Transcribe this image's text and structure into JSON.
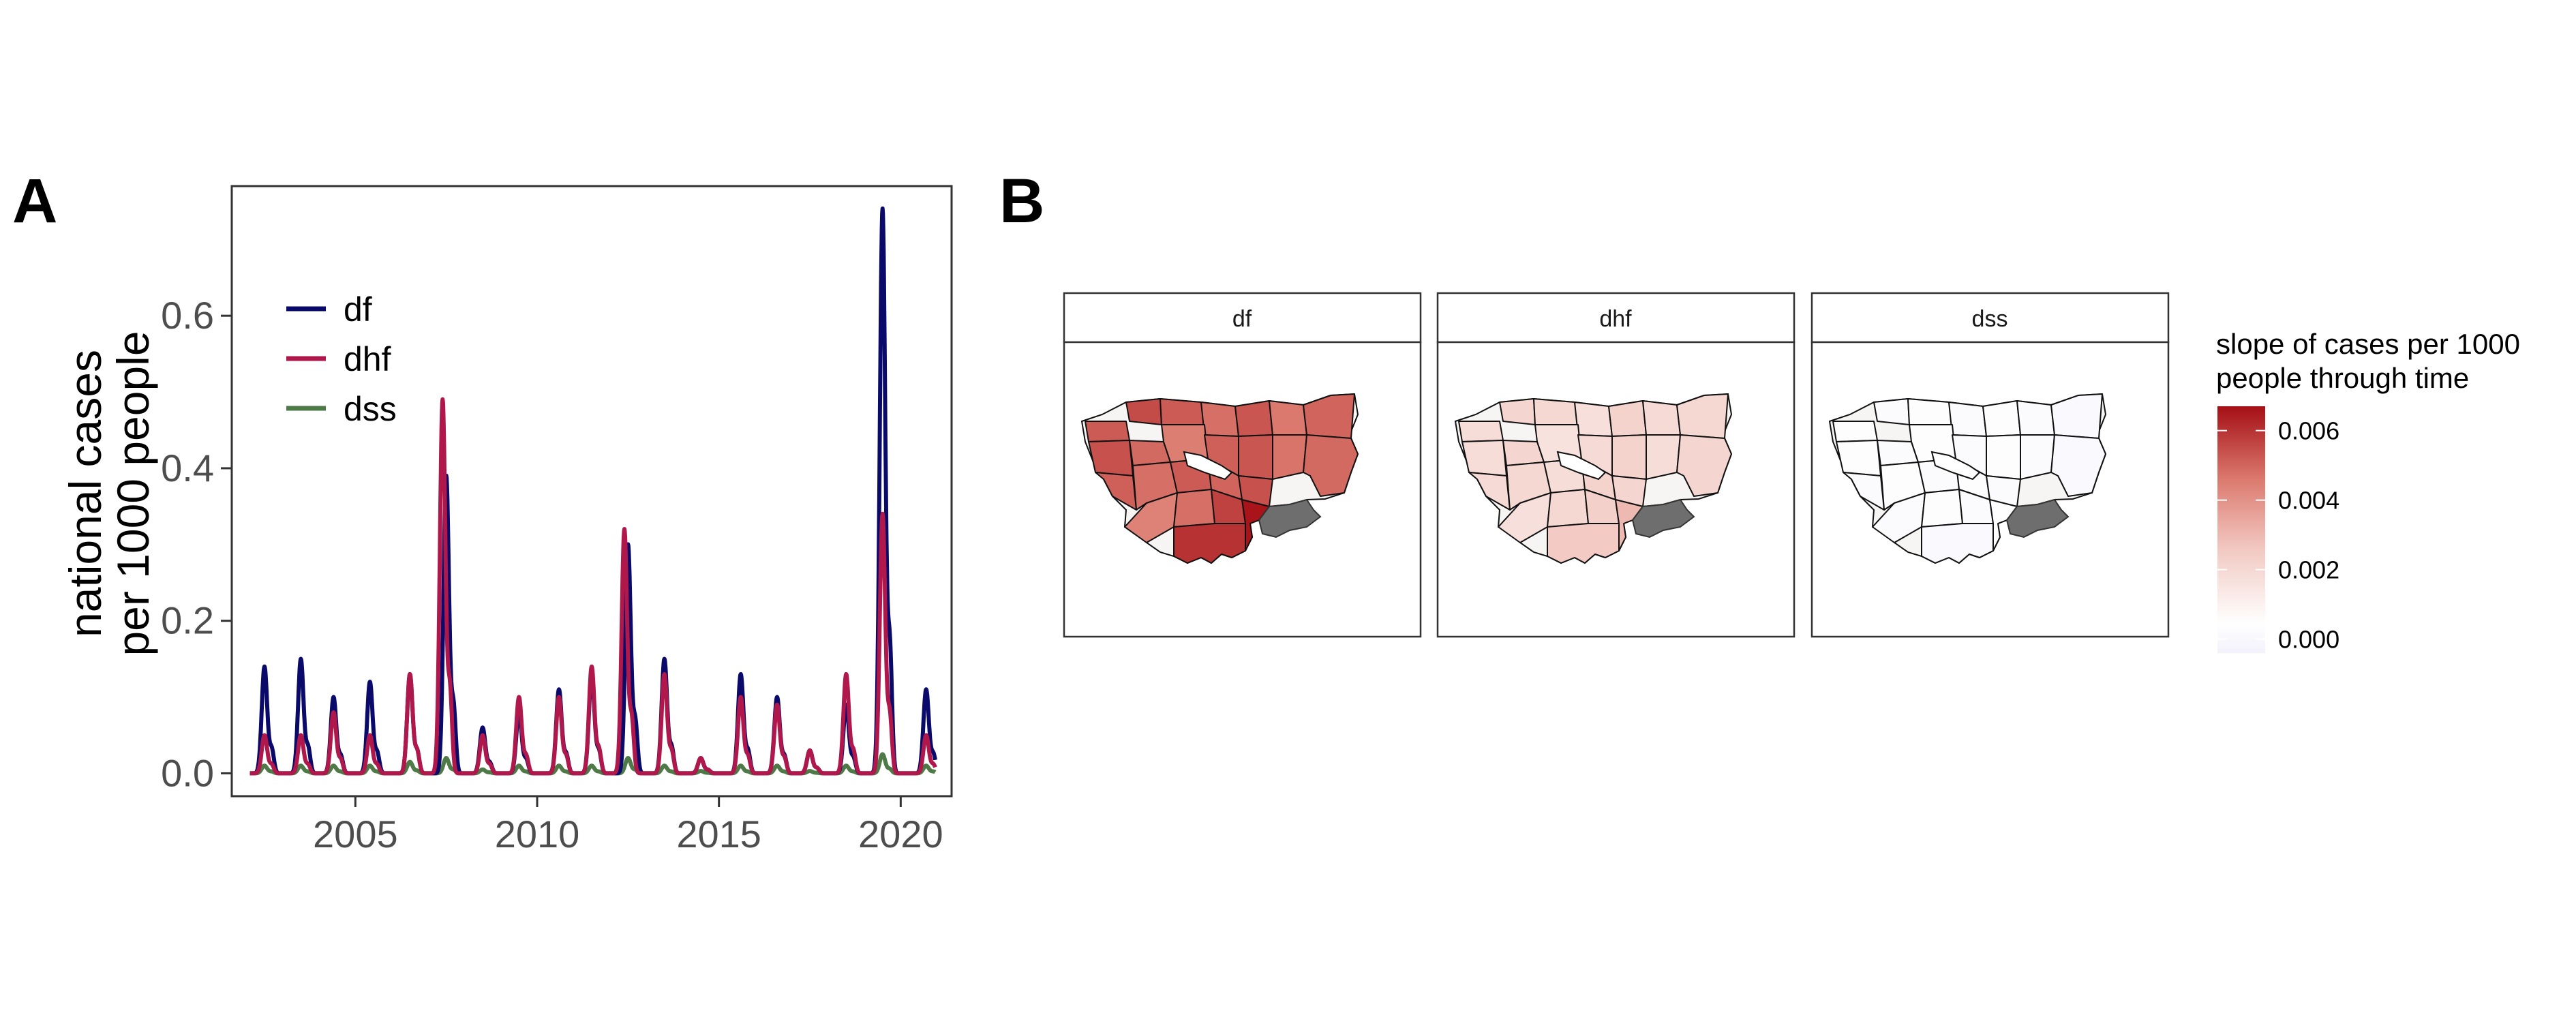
{
  "panels": {
    "a": {
      "letter": "A"
    },
    "b": {
      "letter": "B"
    }
  },
  "colors": {
    "df": "#0a0a6b",
    "dhf": "#b0174a",
    "dss": "#4e7a48",
    "missing_province": "#6e6e6e",
    "scale_low": "#f3f1fb",
    "scale_mid": "#e8a59c",
    "scale_high": "#a50f15"
  },
  "chart_data": [
    {
      "type": "line",
      "ylabel_line1": "national cases",
      "ylabel_line2": "per 1000 people",
      "xlabel": "",
      "xlim": [
        2001.6,
        2021.4
      ],
      "ylim": [
        -0.03,
        0.77
      ],
      "x_ticks": [
        2005,
        2010,
        2015,
        2020
      ],
      "y_ticks": [
        0.0,
        0.2,
        0.4,
        0.6
      ],
      "y_tick_labels": [
        "0.0",
        "0.2",
        "0.4",
        "0.6"
      ],
      "grid": false,
      "legend_position": "top-left",
      "series": [
        {
          "name": "df",
          "color": "#0a0a6b",
          "peaks": [
            [
              2002.5,
              0.14
            ],
            [
              2003.5,
              0.15
            ],
            [
              2004.4,
              0.1
            ],
            [
              2005.4,
              0.12
            ],
            [
              2006.5,
              0.13
            ],
            [
              2007.5,
              0.39
            ],
            [
              2008.5,
              0.06
            ],
            [
              2009.5,
              0.08
            ],
            [
              2010.6,
              0.11
            ],
            [
              2011.5,
              0.13
            ],
            [
              2012.5,
              0.3
            ],
            [
              2013.5,
              0.15
            ],
            [
              2014.5,
              0.02
            ],
            [
              2015.6,
              0.13
            ],
            [
              2016.6,
              0.1
            ],
            [
              2017.5,
              0.03
            ],
            [
              2018.5,
              0.09
            ],
            [
              2019.5,
              0.74
            ],
            [
              2020.7,
              0.11
            ]
          ]
        },
        {
          "name": "dhf",
          "color": "#b0174a",
          "peaks": [
            [
              2002.5,
              0.05
            ],
            [
              2003.5,
              0.05
            ],
            [
              2004.4,
              0.08
            ],
            [
              2005.4,
              0.05
            ],
            [
              2006.5,
              0.13
            ],
            [
              2007.4,
              0.49
            ],
            [
              2008.5,
              0.05
            ],
            [
              2009.5,
              0.1
            ],
            [
              2010.6,
              0.1
            ],
            [
              2011.5,
              0.14
            ],
            [
              2012.4,
              0.32
            ],
            [
              2013.5,
              0.13
            ],
            [
              2014.5,
              0.02
            ],
            [
              2015.6,
              0.1
            ],
            [
              2016.6,
              0.09
            ],
            [
              2017.5,
              0.03
            ],
            [
              2018.5,
              0.13
            ],
            [
              2019.5,
              0.34
            ],
            [
              2020.7,
              0.05
            ]
          ]
        },
        {
          "name": "dss",
          "color": "#4e7a48",
          "peaks": [
            [
              2002.5,
              0.01
            ],
            [
              2003.5,
              0.01
            ],
            [
              2004.4,
              0.01
            ],
            [
              2005.4,
              0.01
            ],
            [
              2006.5,
              0.015
            ],
            [
              2007.5,
              0.02
            ],
            [
              2008.5,
              0.005
            ],
            [
              2009.5,
              0.01
            ],
            [
              2010.6,
              0.01
            ],
            [
              2011.5,
              0.01
            ],
            [
              2012.5,
              0.02
            ],
            [
              2013.5,
              0.01
            ],
            [
              2014.5,
              0.003
            ],
            [
              2015.6,
              0.01
            ],
            [
              2016.6,
              0.01
            ],
            [
              2017.5,
              0.003
            ],
            [
              2018.5,
              0.01
            ],
            [
              2019.5,
              0.025
            ],
            [
              2020.7,
              0.01
            ]
          ]
        }
      ]
    },
    {
      "type": "heatmap",
      "facets": [
        "df",
        "dhf",
        "dss"
      ],
      "colorbar_title_line1": "slope of cases per 1000",
      "colorbar_title_line2": "people through time",
      "colorbar_ticks": [
        0.0,
        0.002,
        0.004,
        0.006
      ],
      "colorbar_tick_labels": [
        "0.000",
        "0.002",
        "0.004",
        "0.006"
      ],
      "colorbar_range": [
        -0.0004,
        0.0067
      ],
      "facet_values": {
        "df": [
          0.0052,
          0.0055,
          0.0052,
          0.0048,
          0.0053,
          0.0046,
          0.005,
          0.0054,
          0.0049,
          0.0045,
          0.0051,
          0.0053,
          0.0047,
          0.0049,
          0.0051,
          0.0048,
          0.0052,
          0.005,
          0.0054,
          0.0044,
          0.0048,
          0.0057,
          0.0066,
          0.006
        ],
        "dhf": [
          0.0018,
          0.0021,
          0.002,
          0.0017,
          0.0022,
          0.0019,
          0.002,
          0.0018,
          0.0021,
          0.0016,
          0.0019,
          0.0022,
          0.0018,
          0.0021,
          0.0019,
          0.002,
          0.0018,
          0.0022,
          0.0021,
          0.0017,
          0.002,
          0.0023,
          0.003,
          0.0025
        ],
        "dss": [
          0.0003,
          0.0002,
          0.0003,
          0.0002,
          0.0003,
          0.0002,
          0.0001,
          0.0003,
          0.0002,
          0.0003,
          0.0002,
          0.0003,
          0.0002,
          0.0001,
          0.0002,
          0.0003,
          0.0002,
          0.0003,
          0.0002,
          0.0002,
          0.0003,
          0.0002,
          0.0004,
          0.0001
        ]
      }
    }
  ]
}
